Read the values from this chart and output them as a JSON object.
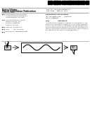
{
  "bg_color": "#ffffff",
  "barcode_color": "#000000",
  "header_left1": "United States",
  "header_left2": "Patent Application Publication",
  "header_left3": "Kauppinen et al.",
  "header_right1": "Pub. No.: US 2011/0269830 A1",
  "header_right2": "Pub. Date:    May 26, 2011",
  "sep_color": "#888888",
  "meta_left": [
    [
      "(54)",
      "HYDROGENATION OF SOLID\nCARBONACEOUS MATERIALS\nUSING MIXED CATALYSTS"
    ],
    [
      "(76)",
      "Inventors: Bharat L. Bhatt,\nBartlesville, OK (US);\nFoster R. Gembicki,\nHouston, TX (US)"
    ],
    [
      "(21)",
      "Appl. No.: 13/162,171"
    ],
    [
      "(22)",
      "Filed:         Jun. 16, 2011"
    ],
    [
      "(60)",
      "Related U.S. Application Data"
    ]
  ],
  "meta_right_title": "Publication Classification",
  "meta_right": [
    [
      "(51)",
      "Int. Cl.",
      "C10G 1/08        (2006.01)"
    ],
    [
      "(52)",
      "U.S. Cl. .....",
      "208/418"
    ]
  ],
  "abstract_title": "(57)                ABSTRACT",
  "abstract_lines": [
    "This description encompasses methods and apparatus for con-",
    "verting solid carbonaceous materials to liquid fuels. More spe-",
    "cifically, the description encompasses methods and apparatus",
    "for hydrogenating solid carbonaceous materials to produce liq-",
    "uid fuels using mixed catalysts comprising at least one dispers-",
    "ible catalyst and at least one supported catalyst."
  ],
  "diagram_line_color": "#000000",
  "diagram_box_fill": "#d0d0d0",
  "diagram_wave_color": "#000000",
  "lbox_label": "100",
  "rbox_label": "110"
}
